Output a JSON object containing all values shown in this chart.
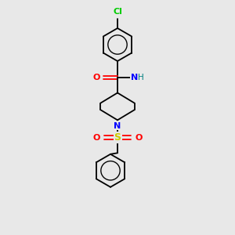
{
  "background_color": "#e8e8e8",
  "atom_colors": {
    "C": "#000000",
    "N_amide": "#0000ff",
    "N_pip": "#0000ff",
    "O": "#ff0000",
    "S": "#cccc00",
    "Cl": "#00cc00",
    "H": "#008080"
  },
  "bond_color": "#000000",
  "figsize": [
    3.0,
    3.0
  ],
  "dpi": 100,
  "lw": 1.3,
  "ring_r": 0.7,
  "font_size": 7.5
}
